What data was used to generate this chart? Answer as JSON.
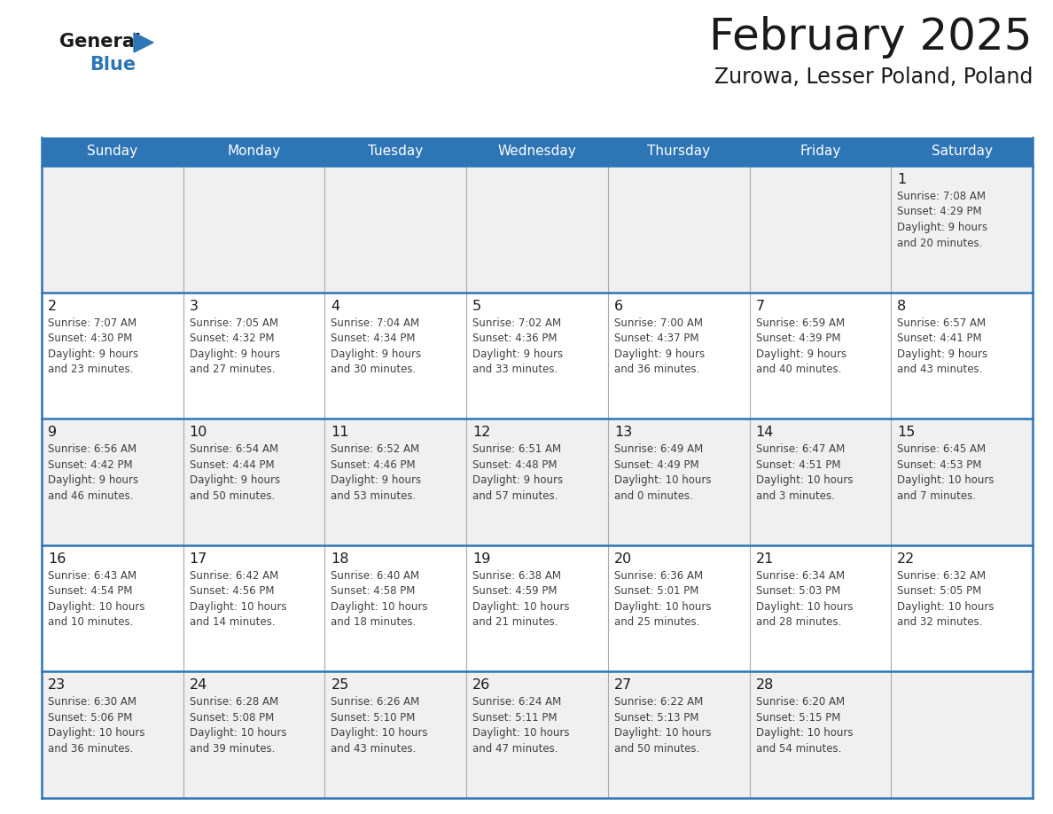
{
  "title": "February 2025",
  "subtitle": "Zurowa, Lesser Poland, Poland",
  "header_color": "#2e75b6",
  "header_text_color": "#ffffff",
  "day_headers": [
    "Sunday",
    "Monday",
    "Tuesday",
    "Wednesday",
    "Thursday",
    "Friday",
    "Saturday"
  ],
  "calendar_data": [
    [
      null,
      null,
      null,
      null,
      null,
      null,
      {
        "day": "1",
        "sunrise": "7:08 AM",
        "sunset": "4:29 PM",
        "daylight1": "9 hours",
        "daylight2": "and 20 minutes."
      }
    ],
    [
      {
        "day": "2",
        "sunrise": "7:07 AM",
        "sunset": "4:30 PM",
        "daylight1": "9 hours",
        "daylight2": "and 23 minutes."
      },
      {
        "day": "3",
        "sunrise": "7:05 AM",
        "sunset": "4:32 PM",
        "daylight1": "9 hours",
        "daylight2": "and 27 minutes."
      },
      {
        "day": "4",
        "sunrise": "7:04 AM",
        "sunset": "4:34 PM",
        "daylight1": "9 hours",
        "daylight2": "and 30 minutes."
      },
      {
        "day": "5",
        "sunrise": "7:02 AM",
        "sunset": "4:36 PM",
        "daylight1": "9 hours",
        "daylight2": "and 33 minutes."
      },
      {
        "day": "6",
        "sunrise": "7:00 AM",
        "sunset": "4:37 PM",
        "daylight1": "9 hours",
        "daylight2": "and 36 minutes."
      },
      {
        "day": "7",
        "sunrise": "6:59 AM",
        "sunset": "4:39 PM",
        "daylight1": "9 hours",
        "daylight2": "and 40 minutes."
      },
      {
        "day": "8",
        "sunrise": "6:57 AM",
        "sunset": "4:41 PM",
        "daylight1": "9 hours",
        "daylight2": "and 43 minutes."
      }
    ],
    [
      {
        "day": "9",
        "sunrise": "6:56 AM",
        "sunset": "4:42 PM",
        "daylight1": "9 hours",
        "daylight2": "and 46 minutes."
      },
      {
        "day": "10",
        "sunrise": "6:54 AM",
        "sunset": "4:44 PM",
        "daylight1": "9 hours",
        "daylight2": "and 50 minutes."
      },
      {
        "day": "11",
        "sunrise": "6:52 AM",
        "sunset": "4:46 PM",
        "daylight1": "9 hours",
        "daylight2": "and 53 minutes."
      },
      {
        "day": "12",
        "sunrise": "6:51 AM",
        "sunset": "4:48 PM",
        "daylight1": "9 hours",
        "daylight2": "and 57 minutes."
      },
      {
        "day": "13",
        "sunrise": "6:49 AM",
        "sunset": "4:49 PM",
        "daylight1": "10 hours",
        "daylight2": "and 0 minutes."
      },
      {
        "day": "14",
        "sunrise": "6:47 AM",
        "sunset": "4:51 PM",
        "daylight1": "10 hours",
        "daylight2": "and 3 minutes."
      },
      {
        "day": "15",
        "sunrise": "6:45 AM",
        "sunset": "4:53 PM",
        "daylight1": "10 hours",
        "daylight2": "and 7 minutes."
      }
    ],
    [
      {
        "day": "16",
        "sunrise": "6:43 AM",
        "sunset": "4:54 PM",
        "daylight1": "10 hours",
        "daylight2": "and 10 minutes."
      },
      {
        "day": "17",
        "sunrise": "6:42 AM",
        "sunset": "4:56 PM",
        "daylight1": "10 hours",
        "daylight2": "and 14 minutes."
      },
      {
        "day": "18",
        "sunrise": "6:40 AM",
        "sunset": "4:58 PM",
        "daylight1": "10 hours",
        "daylight2": "and 18 minutes."
      },
      {
        "day": "19",
        "sunrise": "6:38 AM",
        "sunset": "4:59 PM",
        "daylight1": "10 hours",
        "daylight2": "and 21 minutes."
      },
      {
        "day": "20",
        "sunrise": "6:36 AM",
        "sunset": "5:01 PM",
        "daylight1": "10 hours",
        "daylight2": "and 25 minutes."
      },
      {
        "day": "21",
        "sunrise": "6:34 AM",
        "sunset": "5:03 PM",
        "daylight1": "10 hours",
        "daylight2": "and 28 minutes."
      },
      {
        "day": "22",
        "sunrise": "6:32 AM",
        "sunset": "5:05 PM",
        "daylight1": "10 hours",
        "daylight2": "and 32 minutes."
      }
    ],
    [
      {
        "day": "23",
        "sunrise": "6:30 AM",
        "sunset": "5:06 PM",
        "daylight1": "10 hours",
        "daylight2": "and 36 minutes."
      },
      {
        "day": "24",
        "sunrise": "6:28 AM",
        "sunset": "5:08 PM",
        "daylight1": "10 hours",
        "daylight2": "and 39 minutes."
      },
      {
        "day": "25",
        "sunrise": "6:26 AM",
        "sunset": "5:10 PM",
        "daylight1": "10 hours",
        "daylight2": "and 43 minutes."
      },
      {
        "day": "26",
        "sunrise": "6:24 AM",
        "sunset": "5:11 PM",
        "daylight1": "10 hours",
        "daylight2": "and 47 minutes."
      },
      {
        "day": "27",
        "sunrise": "6:22 AM",
        "sunset": "5:13 PM",
        "daylight1": "10 hours",
        "daylight2": "and 50 minutes."
      },
      {
        "day": "28",
        "sunrise": "6:20 AM",
        "sunset": "5:15 PM",
        "daylight1": "10 hours",
        "daylight2": "and 54 minutes."
      },
      null
    ]
  ],
  "border_color": "#2e75b6",
  "separator_color": "#aaaaaa",
  "text_color": "#404040",
  "day_num_color": "#1a1a1a",
  "row_bg": [
    "#f0f0f0",
    "#ffffff",
    "#f0f0f0",
    "#ffffff",
    "#f0f0f0"
  ]
}
